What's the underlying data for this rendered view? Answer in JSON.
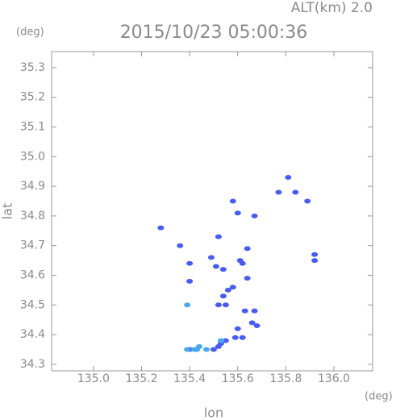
{
  "chart_data": {
    "type": "scatter",
    "title": "2015/10/23 05:00:36",
    "subtitle": "ALT(km) 2.0",
    "y_unit": "(deg)",
    "x_unit": "(deg)",
    "xlabel": "lon",
    "ylabel": "lat",
    "xlim": [
      134.826,
      136.161
    ],
    "ylim": [
      34.278,
      35.354
    ],
    "xticks": [
      {
        "value": 135,
        "label": "135.0"
      },
      135.2,
      135.4,
      135.6,
      135.8,
      {
        "value": 136,
        "label": "136.0"
      }
    ],
    "yticks": [
      34.3,
      34.4,
      34.5,
      34.6,
      34.7,
      34.8,
      34.9,
      {
        "value": 35,
        "label": "35.0"
      },
      35.1,
      35.2,
      35.3
    ],
    "series": [
      {
        "color": "#4a5cf0",
        "x": [
          135.81,
          135.77,
          135.84,
          135.89,
          135.58,
          135.6,
          135.67,
          135.28,
          135.36,
          135.52,
          135.64,
          135.4,
          135.49,
          135.51,
          135.61,
          135.62,
          135.92,
          135.92,
          135.64,
          135.54,
          135.4,
          135.58,
          135.56,
          135.54,
          135.52,
          135.55,
          135.63,
          135.67,
          135.66,
          135.68,
          135.6,
          135.62,
          135.59,
          135.55,
          135.53,
          135.52,
          135.5,
          135.4,
          135.43
        ],
        "values": [
          34.93,
          34.88,
          34.88,
          34.85,
          34.85,
          34.81,
          34.8,
          34.76,
          34.7,
          34.73,
          34.69,
          34.64,
          34.66,
          34.63,
          34.65,
          34.64,
          34.67,
          34.65,
          34.59,
          34.62,
          34.58,
          34.56,
          34.55,
          34.53,
          34.5,
          34.5,
          34.48,
          34.48,
          34.44,
          34.43,
          34.42,
          34.39,
          34.39,
          34.38,
          34.37,
          34.36,
          34.35,
          34.35,
          34.35
        ]
      },
      {
        "color": "#4aa8ec",
        "x": [
          135.39,
          135.44,
          135.47,
          135.43,
          135.42,
          135.39,
          135.53
        ],
        "values": [
          34.5,
          34.36,
          34.35,
          34.35,
          34.35,
          34.35,
          34.38
        ]
      }
    ]
  }
}
